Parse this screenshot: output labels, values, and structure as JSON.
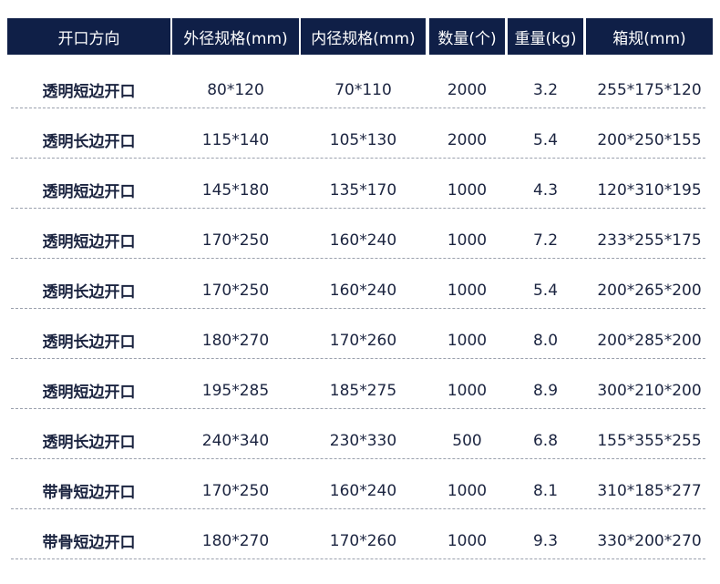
{
  "colors": {
    "header_bg": "#0f1f47",
    "header_text": "#ffffff",
    "body_text": "#1b2440"
  },
  "headers": [
    "开口方向",
    "外径规格(mm)",
    "内径规格(mm)",
    "数量(个)",
    "重量(kg)",
    "箱规(mm)"
  ],
  "rows": [
    [
      "透明短边开口",
      "80*120",
      "70*110",
      "2000",
      "3.2",
      "255*175*120"
    ],
    [
      "透明长边开口",
      "115*140",
      "105*130",
      "2000",
      "5.4",
      "200*250*155"
    ],
    [
      "透明短边开口",
      "145*180",
      "135*170",
      "1000",
      "4.3",
      "120*310*195"
    ],
    [
      "透明短边开口",
      "170*250",
      "160*240",
      "1000",
      "7.2",
      "233*255*175"
    ],
    [
      "透明长边开口",
      "170*250",
      "160*240",
      "1000",
      "5.4",
      "200*265*200"
    ],
    [
      "透明长边开口",
      "180*270",
      "170*260",
      "1000",
      "8.0",
      "200*285*200"
    ],
    [
      "透明短边开口",
      "195*285",
      "185*275",
      "1000",
      "8.9",
      "300*210*200"
    ],
    [
      "透明长边开口",
      "240*340",
      "230*330",
      "500",
      "6.8",
      "155*355*255"
    ],
    [
      "带骨短边开口",
      "170*250",
      "160*240",
      "1000",
      "8.1",
      "310*185*277"
    ],
    [
      "带骨短边开口",
      "180*270",
      "170*260",
      "1000",
      "9.3",
      "330*200*270"
    ]
  ]
}
